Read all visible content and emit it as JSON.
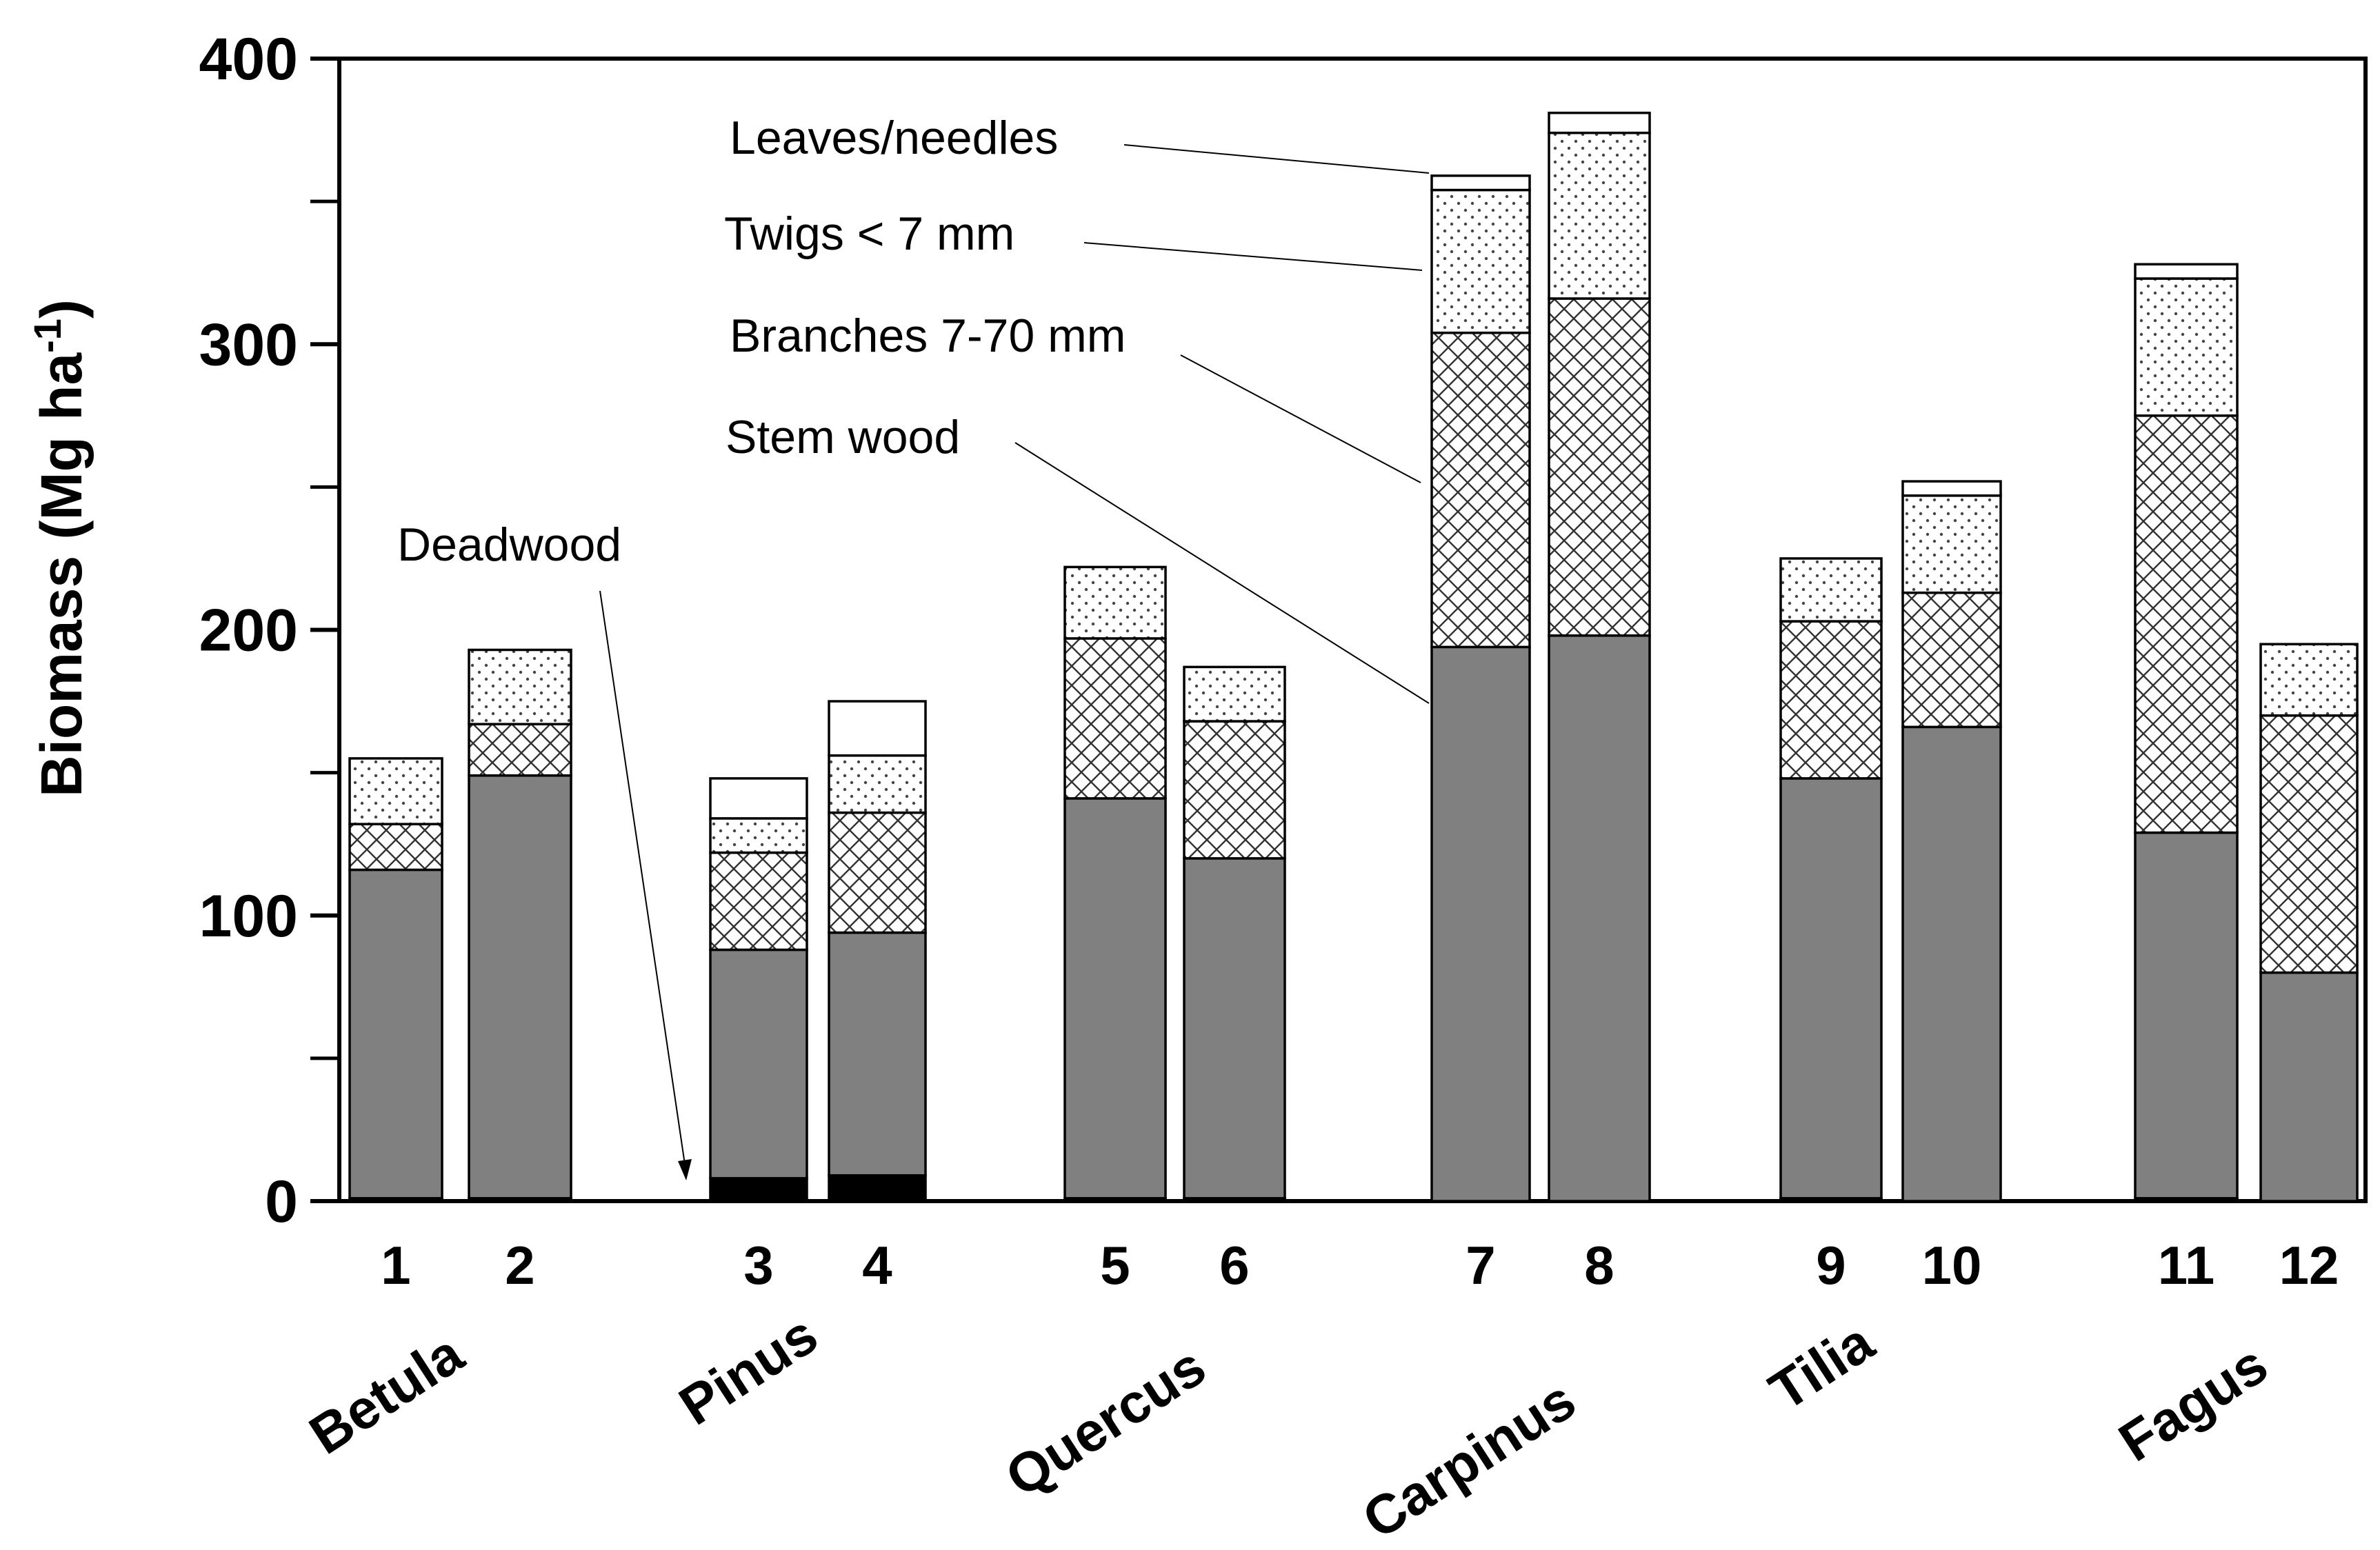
{
  "chart_data": {
    "type": "bar",
    "stacked": true,
    "title": "",
    "xlabel": "",
    "ylabel": "Biomass (Mg ha",
    "ylabel_superscript": "-1",
    "ylabel_close": ")",
    "ylim": [
      0,
      400
    ],
    "y_ticks": [
      0,
      100,
      200,
      300,
      400
    ],
    "y_minor_ticks": [
      50,
      150,
      250,
      350
    ],
    "y_tick_labels": [
      "0",
      "100",
      "200",
      "300",
      "400"
    ],
    "categories": [
      "1",
      "2",
      "3",
      "4",
      "5",
      "6",
      "7",
      "8",
      "9",
      "10",
      "11",
      "12"
    ],
    "groups": [
      {
        "name": "Betula",
        "bars": [
          "1",
          "2"
        ]
      },
      {
        "name": "Pinus",
        "bars": [
          "3",
          "4"
        ]
      },
      {
        "name": "Quercus",
        "bars": [
          "5",
          "6"
        ]
      },
      {
        "name": "Carpinus",
        "bars": [
          "7",
          "8"
        ]
      },
      {
        "name": "Tilia",
        "bars": [
          "9",
          "10"
        ]
      },
      {
        "name": "Fagus",
        "bars": [
          "11",
          "12"
        ]
      }
    ],
    "series": [
      {
        "name": "Deadwood",
        "fill": "black",
        "values": [
          1,
          1,
          8,
          9,
          1,
          1,
          0,
          0,
          1,
          0,
          1,
          0
        ]
      },
      {
        "name": "Stem wood",
        "fill": "gray",
        "values": [
          115,
          148,
          80,
          85,
          140,
          119,
          194,
          198,
          147,
          166,
          128,
          80
        ]
      },
      {
        "name": "Branches 7-70 mm",
        "fill": "crosshatch",
        "values": [
          16,
          18,
          34,
          42,
          56,
          48,
          110,
          118,
          55,
          47,
          146,
          90
        ]
      },
      {
        "name": "Twigs < 7 mm",
        "fill": "dotted",
        "values": [
          23,
          26,
          12,
          20,
          25,
          19,
          50,
          58,
          22,
          34,
          48,
          25
        ]
      },
      {
        "name": "Leaves/needles",
        "fill": "white",
        "values": [
          0,
          0,
          14,
          19,
          0,
          0,
          5,
          7,
          0,
          5,
          5,
          0
        ]
      }
    ],
    "annotations": [
      "Leaves/needles",
      "Twigs < 7 mm",
      "Branches 7-70 mm",
      "Stem wood",
      "Deadwood"
    ],
    "colors": {
      "stem": "#808080",
      "deadwood": "#000000",
      "outline": "#000000",
      "background": "#ffffff"
    }
  }
}
